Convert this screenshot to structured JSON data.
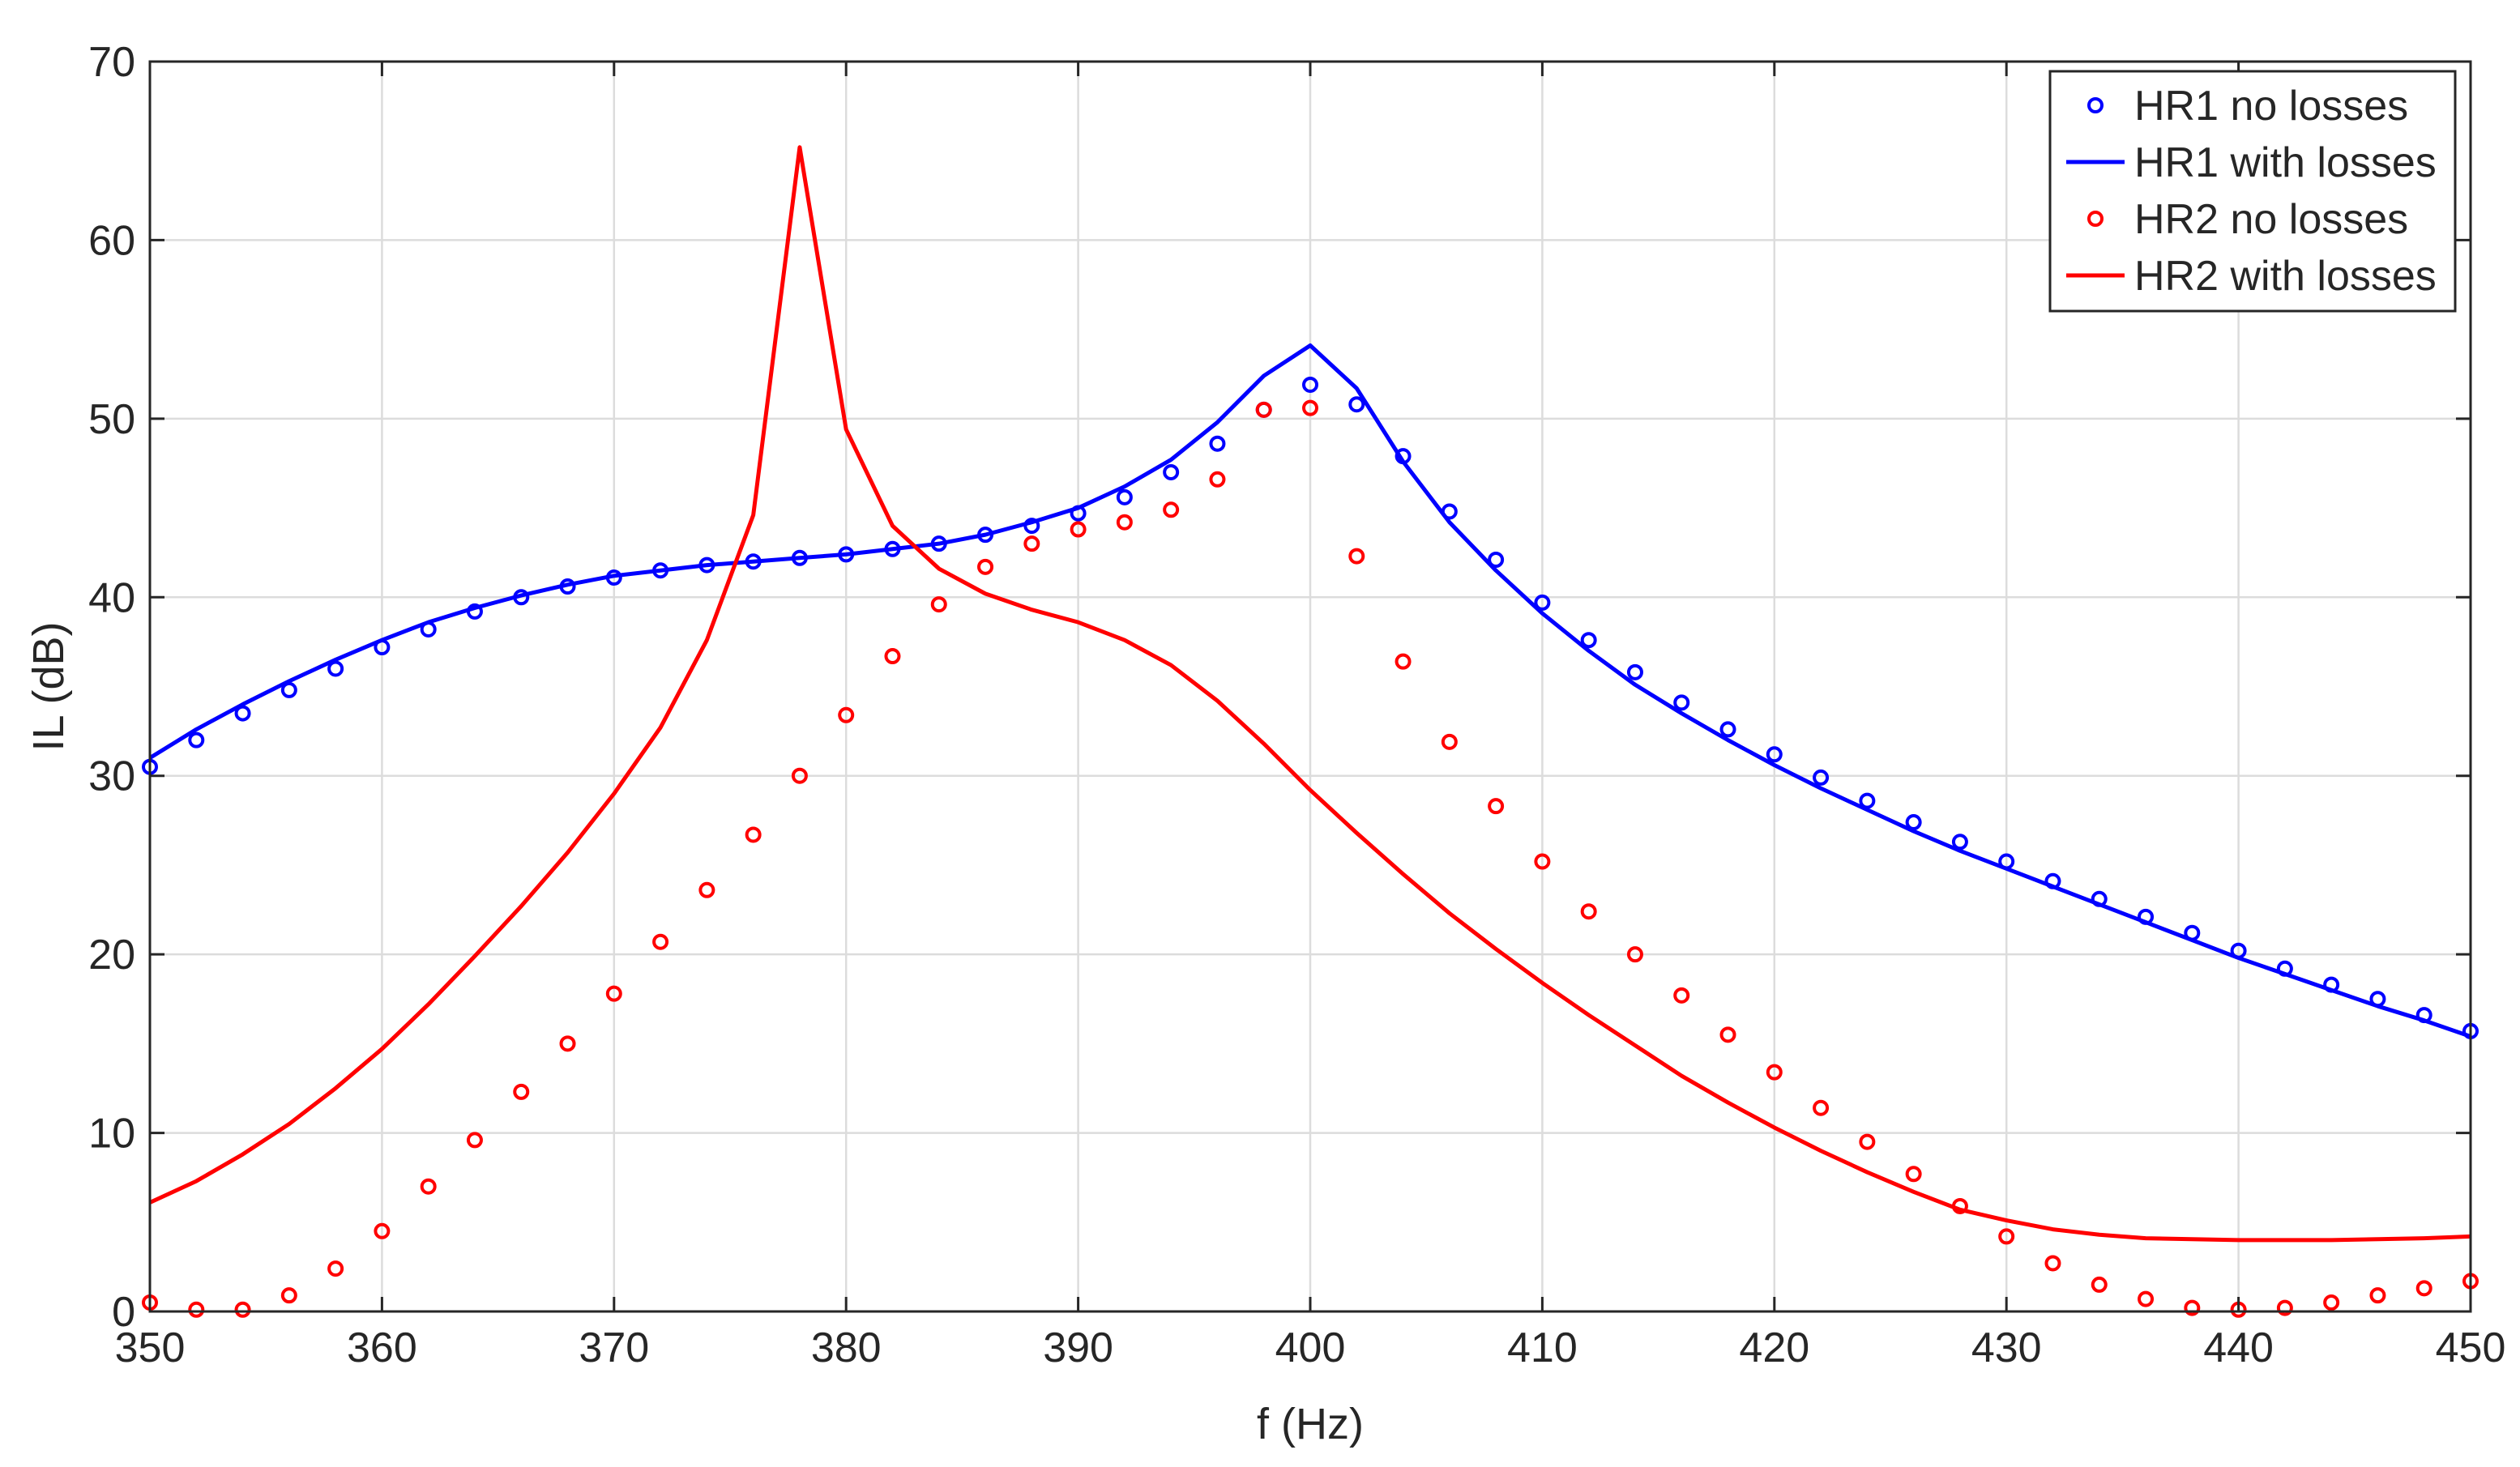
{
  "chart_data": {
    "type": "line",
    "xlabel": "f (Hz)",
    "ylabel": "IL (dB)",
    "xlim": [
      350,
      450
    ],
    "ylim": [
      0,
      70
    ],
    "xticks": [
      "350",
      "360",
      "370",
      "380",
      "390",
      "400",
      "410",
      "420",
      "430",
      "440",
      "450"
    ],
    "yticks": [
      "0",
      "10",
      "20",
      "30",
      "40",
      "50",
      "60",
      "70"
    ],
    "grid": true,
    "legend_position": "top-right",
    "x": [
      350,
      352,
      354,
      356,
      358,
      360,
      362,
      364,
      366,
      368,
      370,
      372,
      374,
      376,
      378,
      380,
      382,
      384,
      386,
      388,
      390,
      392,
      394,
      396,
      398,
      400,
      402,
      404,
      406,
      408,
      410,
      412,
      414,
      416,
      418,
      420,
      422,
      424,
      426,
      428,
      430,
      432,
      434,
      436,
      438,
      440,
      442,
      444,
      446,
      448,
      450
    ],
    "series": [
      {
        "name": "HR1 no losses",
        "style": "markers",
        "color": "#0000ff",
        "values": [
          30.5,
          32.0,
          33.5,
          34.8,
          36.0,
          37.2,
          38.2,
          39.2,
          40.0,
          40.6,
          41.1,
          41.5,
          41.8,
          42.0,
          42.2,
          42.4,
          42.7,
          43.0,
          43.5,
          44.0,
          44.7,
          45.6,
          47.0,
          48.6,
          50.5,
          51.9,
          50.8,
          47.9,
          44.8,
          42.1,
          39.7,
          37.6,
          35.8,
          34.1,
          32.6,
          31.2,
          29.9,
          28.6,
          27.4,
          26.3,
          25.2,
          24.1,
          23.1,
          22.1,
          21.2,
          20.2,
          19.2,
          18.3,
          17.5,
          16.6,
          15.7
        ]
      },
      {
        "name": "HR1 with losses",
        "style": "line",
        "color": "#0000ff",
        "values": [
          31.0,
          32.6,
          34.0,
          35.3,
          36.5,
          37.6,
          38.6,
          39.4,
          40.1,
          40.7,
          41.2,
          41.5,
          41.8,
          42.0,
          42.2,
          42.4,
          42.7,
          43.0,
          43.5,
          44.2,
          45.0,
          46.2,
          47.7,
          49.8,
          52.4,
          54.1,
          51.7,
          47.6,
          44.2,
          41.5,
          39.1,
          37.0,
          35.1,
          33.5,
          32.0,
          30.6,
          29.3,
          28.1,
          26.9,
          25.8,
          24.8,
          23.8,
          22.8,
          21.8,
          20.8,
          19.8,
          18.9,
          18.0,
          17.1,
          16.3,
          15.4
        ]
      },
      {
        "name": "HR2 no losses",
        "style": "markers",
        "color": "#ff0000",
        "values": [
          0.5,
          0.1,
          0.1,
          0.9,
          2.4,
          4.5,
          7.0,
          9.6,
          12.3,
          15.0,
          17.8,
          20.7,
          23.6,
          26.7,
          30.0,
          33.4,
          36.7,
          39.6,
          41.7,
          43.0,
          43.8,
          44.2,
          44.9,
          46.6,
          50.5,
          50.6,
          42.3,
          36.4,
          31.9,
          28.3,
          25.2,
          22.4,
          20.0,
          17.7,
          15.5,
          13.4,
          11.4,
          9.5,
          7.7,
          5.9,
          4.2,
          2.7,
          1.5,
          0.7,
          0.2,
          0.1,
          0.2,
          0.5,
          0.9,
          1.3,
          1.7
        ]
      },
      {
        "name": "HR2 with losses",
        "style": "line",
        "color": "#ff0000",
        "values": [
          6.1,
          7.3,
          8.8,
          10.5,
          12.5,
          14.7,
          17.2,
          19.9,
          22.7,
          25.7,
          29.0,
          32.7,
          37.6,
          44.6,
          65.2,
          49.4,
          44.0,
          41.6,
          40.2,
          39.3,
          38.6,
          37.6,
          36.2,
          34.2,
          31.8,
          29.2,
          26.8,
          24.5,
          22.3,
          20.3,
          18.4,
          16.6,
          14.9,
          13.2,
          11.7,
          10.3,
          9.0,
          7.8,
          6.7,
          5.7,
          5.1,
          4.6,
          4.3,
          4.1,
          4.05,
          4.0,
          4.0,
          4.0,
          4.05,
          4.1,
          4.2
        ]
      }
    ]
  }
}
